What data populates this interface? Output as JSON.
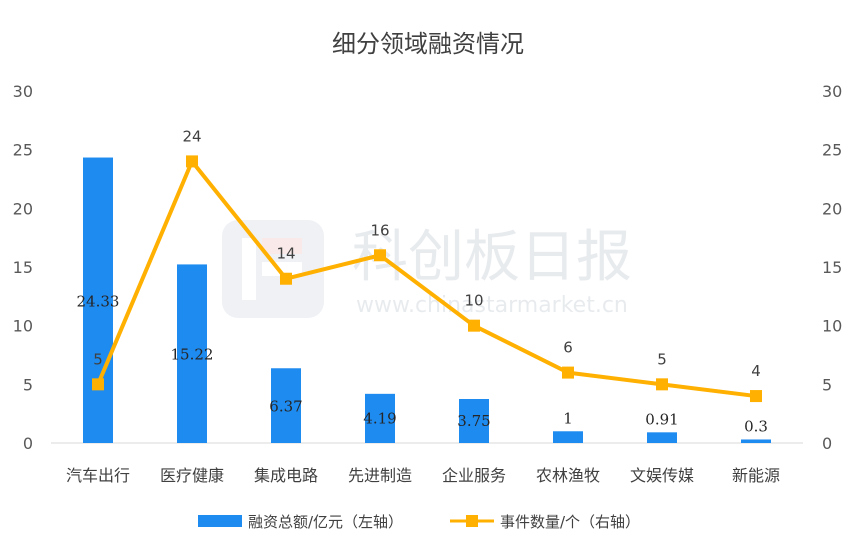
{
  "chart_data": {
    "type": "bar",
    "title": "细分领域融资情况",
    "categories": [
      "汽车出行",
      "医疗健康",
      "集成电路",
      "先进制造",
      "企业服务",
      "农林渔牧",
      "文娱传媒",
      "新能源"
    ],
    "series": [
      {
        "name": "融资总额/亿元（左轴）",
        "type": "bar",
        "axis": "left",
        "color": "#1E8BF0",
        "values": [
          24.33,
          15.22,
          6.37,
          4.19,
          3.75,
          1,
          0.91,
          0.3
        ],
        "labels": [
          "24.33",
          "15.22",
          "6.37",
          "4.19",
          "3.75",
          "1",
          "0.91",
          "0.3"
        ]
      },
      {
        "name": "事件数量/个（右轴）",
        "type": "line",
        "axis": "right",
        "color": "#FFB000",
        "values": [
          5,
          24,
          14,
          16,
          10,
          6,
          5,
          4
        ],
        "labels": [
          "5",
          "24",
          "14",
          "16",
          "10",
          "6",
          "5",
          "4"
        ]
      }
    ],
    "ylim": [
      0,
      30
    ],
    "y2lim": [
      0,
      30
    ],
    "yticks": [
      "0",
      "5",
      "10",
      "15",
      "20",
      "25",
      "30"
    ],
    "y2ticks": [
      "0",
      "5",
      "10",
      "15",
      "20",
      "25",
      "30"
    ],
    "grid": false,
    "legend_position": "bottom"
  },
  "watermark": {
    "brand": "科创板日报",
    "url": "www.chinastarmarket.cn"
  }
}
